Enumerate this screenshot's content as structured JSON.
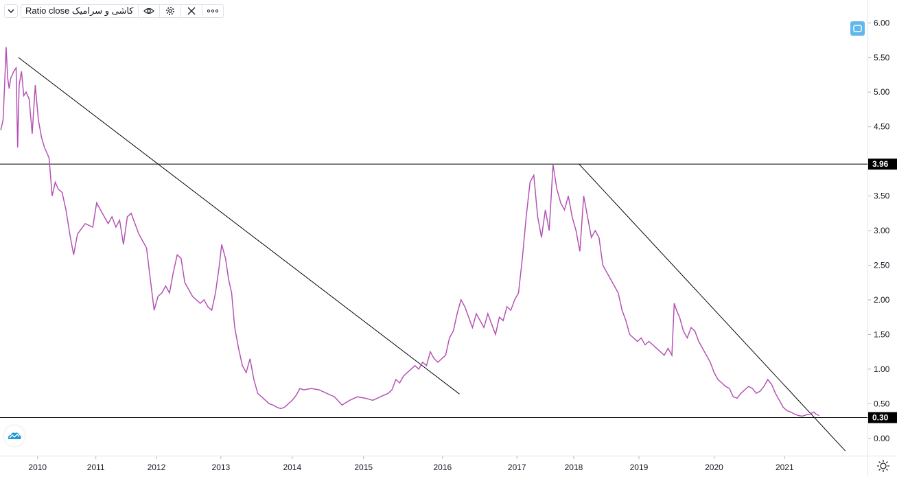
{
  "legend": {
    "title": "Ratio close کاشی و سرامیک",
    "icons": [
      "chevron-down-icon",
      "eye-icon",
      "gear-icon",
      "close-icon",
      "more-icon"
    ]
  },
  "colors": {
    "series": "#b452b4",
    "line": "#000000",
    "accent": "#63b7ec"
  },
  "chart_data": {
    "type": "line",
    "series": [
      {
        "points": [
          [
            2009.25,
            4.45
          ],
          [
            2009.28,
            4.6
          ],
          [
            2009.3,
            5.1
          ],
          [
            2009.32,
            5.65
          ],
          [
            2009.34,
            5.2
          ],
          [
            2009.36,
            5.05
          ],
          [
            2009.38,
            5.2
          ],
          [
            2009.42,
            5.3
          ],
          [
            2009.45,
            5.35
          ],
          [
            2009.47,
            4.2
          ],
          [
            2009.49,
            5.1
          ],
          [
            2009.52,
            5.3
          ],
          [
            2009.55,
            4.95
          ],
          [
            2009.58,
            5.0
          ],
          [
            2009.62,
            4.9
          ],
          [
            2009.66,
            4.4
          ],
          [
            2009.7,
            5.1
          ],
          [
            2009.74,
            4.6
          ],
          [
            2009.78,
            4.35
          ],
          [
            2009.82,
            4.2
          ],
          [
            2009.88,
            4.05
          ],
          [
            2009.92,
            3.5
          ],
          [
            2009.96,
            3.7
          ],
          [
            2010.0,
            3.6
          ],
          [
            2010.05,
            3.55
          ],
          [
            2010.1,
            3.3
          ],
          [
            2010.15,
            2.95
          ],
          [
            2010.2,
            2.65
          ],
          [
            2010.25,
            2.95
          ],
          [
            2010.35,
            3.1
          ],
          [
            2010.45,
            3.05
          ],
          [
            2010.5,
            3.4
          ],
          [
            2010.55,
            3.3
          ],
          [
            2010.6,
            3.2
          ],
          [
            2010.65,
            3.1
          ],
          [
            2010.7,
            3.2
          ],
          [
            2010.75,
            3.05
          ],
          [
            2010.8,
            3.15
          ],
          [
            2010.85,
            2.8
          ],
          [
            2010.9,
            3.2
          ],
          [
            2010.95,
            3.25
          ],
          [
            2011.0,
            3.1
          ],
          [
            2011.05,
            2.95
          ],
          [
            2011.1,
            2.85
          ],
          [
            2011.15,
            2.75
          ],
          [
            2011.2,
            2.3
          ],
          [
            2011.25,
            1.85
          ],
          [
            2011.3,
            2.05
          ],
          [
            2011.35,
            2.1
          ],
          [
            2011.4,
            2.2
          ],
          [
            2011.45,
            2.1
          ],
          [
            2011.5,
            2.4
          ],
          [
            2011.55,
            2.65
          ],
          [
            2011.6,
            2.6
          ],
          [
            2011.65,
            2.25
          ],
          [
            2011.7,
            2.15
          ],
          [
            2011.75,
            2.05
          ],
          [
            2011.8,
            2.0
          ],
          [
            2011.85,
            1.95
          ],
          [
            2011.9,
            2.0
          ],
          [
            2011.95,
            1.9
          ],
          [
            2012.0,
            1.85
          ],
          [
            2012.05,
            2.1
          ],
          [
            2012.1,
            2.5
          ],
          [
            2012.13,
            2.8
          ],
          [
            2012.18,
            2.6
          ],
          [
            2012.22,
            2.3
          ],
          [
            2012.26,
            2.1
          ],
          [
            2012.3,
            1.6
          ],
          [
            2012.35,
            1.3
          ],
          [
            2012.4,
            1.05
          ],
          [
            2012.45,
            0.95
          ],
          [
            2012.5,
            1.15
          ],
          [
            2012.55,
            0.85
          ],
          [
            2012.6,
            0.65
          ],
          [
            2012.65,
            0.6
          ],
          [
            2012.7,
            0.55
          ],
          [
            2012.75,
            0.5
          ],
          [
            2012.8,
            0.48
          ],
          [
            2012.85,
            0.45
          ],
          [
            2012.9,
            0.43
          ],
          [
            2012.95,
            0.45
          ],
          [
            2013.0,
            0.5
          ],
          [
            2013.05,
            0.55
          ],
          [
            2013.1,
            0.62
          ],
          [
            2013.15,
            0.72
          ],
          [
            2013.2,
            0.7
          ],
          [
            2013.3,
            0.72
          ],
          [
            2013.4,
            0.7
          ],
          [
            2013.5,
            0.65
          ],
          [
            2013.6,
            0.6
          ],
          [
            2013.7,
            0.48
          ],
          [
            2013.8,
            0.55
          ],
          [
            2013.9,
            0.6
          ],
          [
            2014.0,
            0.58
          ],
          [
            2014.1,
            0.55
          ],
          [
            2014.2,
            0.6
          ],
          [
            2014.3,
            0.65
          ],
          [
            2014.35,
            0.7
          ],
          [
            2014.4,
            0.85
          ],
          [
            2014.45,
            0.8
          ],
          [
            2014.5,
            0.9
          ],
          [
            2014.55,
            0.95
          ],
          [
            2014.6,
            1.0
          ],
          [
            2014.65,
            1.05
          ],
          [
            2014.7,
            1.0
          ],
          [
            2014.75,
            1.1
          ],
          [
            2014.8,
            1.05
          ],
          [
            2014.85,
            1.25
          ],
          [
            2014.9,
            1.15
          ],
          [
            2014.95,
            1.1
          ],
          [
            2015.0,
            1.15
          ],
          [
            2015.05,
            1.2
          ],
          [
            2015.1,
            1.45
          ],
          [
            2015.15,
            1.55
          ],
          [
            2015.2,
            1.8
          ],
          [
            2015.25,
            2.0
          ],
          [
            2015.3,
            1.9
          ],
          [
            2015.35,
            1.75
          ],
          [
            2015.4,
            1.6
          ],
          [
            2015.45,
            1.8
          ],
          [
            2015.5,
            1.7
          ],
          [
            2015.55,
            1.6
          ],
          [
            2015.6,
            1.8
          ],
          [
            2015.65,
            1.65
          ],
          [
            2015.7,
            1.5
          ],
          [
            2015.75,
            1.75
          ],
          [
            2015.8,
            1.7
          ],
          [
            2015.85,
            1.9
          ],
          [
            2015.9,
            1.85
          ],
          [
            2015.95,
            2.0
          ],
          [
            2016.0,
            2.1
          ],
          [
            2016.05,
            2.6
          ],
          [
            2016.1,
            3.2
          ],
          [
            2016.15,
            3.7
          ],
          [
            2016.2,
            3.8
          ],
          [
            2016.25,
            3.2
          ],
          [
            2016.3,
            2.9
          ],
          [
            2016.35,
            3.3
          ],
          [
            2016.4,
            3.0
          ],
          [
            2016.45,
            3.95
          ],
          [
            2016.5,
            3.6
          ],
          [
            2016.55,
            3.4
          ],
          [
            2016.6,
            3.3
          ],
          [
            2016.65,
            3.5
          ],
          [
            2016.7,
            3.2
          ],
          [
            2016.75,
            3.0
          ],
          [
            2016.8,
            2.7
          ],
          [
            2016.85,
            3.5
          ],
          [
            2016.9,
            3.2
          ],
          [
            2016.95,
            2.9
          ],
          [
            2017.0,
            3.0
          ],
          [
            2017.05,
            2.9
          ],
          [
            2017.1,
            2.5
          ],
          [
            2017.15,
            2.4
          ],
          [
            2017.2,
            2.3
          ],
          [
            2017.25,
            2.2
          ],
          [
            2017.3,
            2.1
          ],
          [
            2017.35,
            1.85
          ],
          [
            2017.4,
            1.7
          ],
          [
            2017.45,
            1.5
          ],
          [
            2017.5,
            1.45
          ],
          [
            2017.55,
            1.4
          ],
          [
            2017.6,
            1.45
          ],
          [
            2017.65,
            1.35
          ],
          [
            2017.7,
            1.4
          ],
          [
            2017.75,
            1.35
          ],
          [
            2017.8,
            1.3
          ],
          [
            2017.85,
            1.25
          ],
          [
            2017.9,
            1.2
          ],
          [
            2017.95,
            1.3
          ],
          [
            2018.0,
            1.2
          ],
          [
            2018.03,
            1.95
          ],
          [
            2018.06,
            1.85
          ],
          [
            2018.1,
            1.75
          ],
          [
            2018.15,
            1.55
          ],
          [
            2018.2,
            1.45
          ],
          [
            2018.25,
            1.6
          ],
          [
            2018.3,
            1.55
          ],
          [
            2018.35,
            1.4
          ],
          [
            2018.4,
            1.3
          ],
          [
            2018.45,
            1.2
          ],
          [
            2018.5,
            1.1
          ],
          [
            2018.55,
            0.95
          ],
          [
            2018.6,
            0.85
          ],
          [
            2018.65,
            0.8
          ],
          [
            2018.7,
            0.75
          ],
          [
            2018.75,
            0.72
          ],
          [
            2018.8,
            0.6
          ],
          [
            2018.85,
            0.58
          ],
          [
            2018.9,
            0.65
          ],
          [
            2018.95,
            0.7
          ],
          [
            2019.0,
            0.75
          ],
          [
            2019.05,
            0.72
          ],
          [
            2019.1,
            0.65
          ],
          [
            2019.15,
            0.68
          ],
          [
            2019.2,
            0.75
          ],
          [
            2019.25,
            0.85
          ],
          [
            2019.3,
            0.78
          ],
          [
            2019.35,
            0.65
          ],
          [
            2019.4,
            0.55
          ],
          [
            2019.45,
            0.45
          ],
          [
            2019.5,
            0.4
          ],
          [
            2019.55,
            0.38
          ],
          [
            2019.6,
            0.35
          ],
          [
            2019.65,
            0.33
          ],
          [
            2019.7,
            0.32
          ],
          [
            2019.75,
            0.34
          ],
          [
            2019.8,
            0.35
          ],
          [
            2019.85,
            0.38
          ],
          [
            2019.88,
            0.35
          ],
          [
            2019.92,
            0.33
          ]
        ]
      }
    ],
    "hlines": [
      3.96,
      0.3
    ],
    "trendlines": [
      [
        [
          2009.48,
          5.5
        ],
        [
          2015.23,
          0.64
        ]
      ],
      [
        [
          2016.79,
          3.96
        ],
        [
          2020.26,
          -0.18
        ]
      ]
    ],
    "x_ticks": [
      {
        "pos": 2009.73,
        "label": "2010"
      },
      {
        "pos": 2010.49,
        "label": "2011"
      },
      {
        "pos": 2011.28,
        "label": "2012"
      },
      {
        "pos": 2012.12,
        "label": "2013"
      },
      {
        "pos": 2013.05,
        "label": "2014"
      },
      {
        "pos": 2013.98,
        "label": "2015"
      },
      {
        "pos": 2015.01,
        "label": "2016"
      },
      {
        "pos": 2015.98,
        "label": "2017"
      },
      {
        "pos": 2016.72,
        "label": "2018"
      },
      {
        "pos": 2017.57,
        "label": "2019"
      },
      {
        "pos": 2018.55,
        "label": "2020"
      },
      {
        "pos": 2019.47,
        "label": "2021"
      }
    ],
    "y_ticks": [
      "6.00",
      "5.50",
      "5.00",
      "4.50",
      "3.50",
      "3.00",
      "2.50",
      "2.00",
      "1.50",
      "1.00",
      "0.50",
      "0.00"
    ],
    "y_tick_values": [
      6.0,
      5.5,
      5.0,
      4.5,
      3.5,
      3.0,
      2.5,
      2.0,
      1.5,
      1.0,
      0.5,
      0.0
    ],
    "price_labels": [
      {
        "value": 3.96,
        "label": "3.96"
      },
      {
        "value": 0.3,
        "label": "0.30"
      }
    ],
    "xlim": [
      2009.24,
      2020.55
    ],
    "ylim": [
      -0.25,
      6.33
    ]
  }
}
